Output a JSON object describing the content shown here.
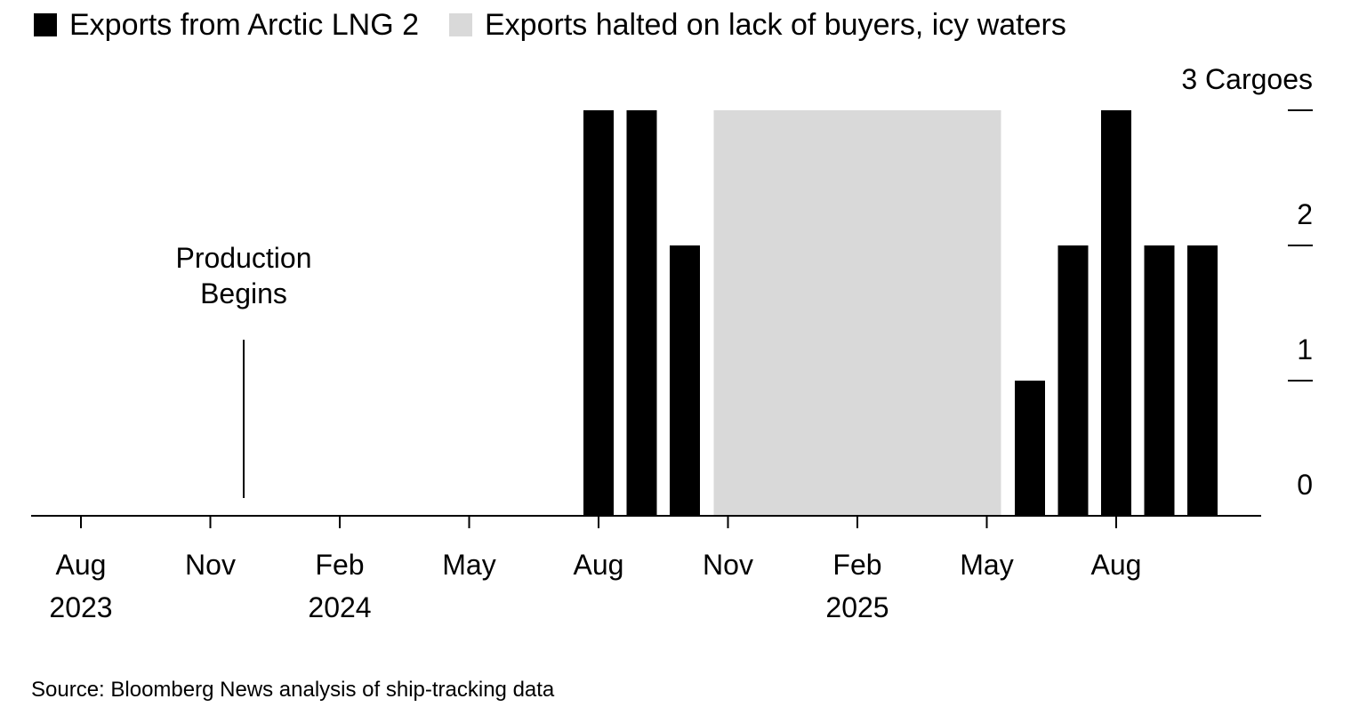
{
  "legend": [
    {
      "label": "Exports from Arctic LNG 2",
      "color": "#000000"
    },
    {
      "label": "Exports halted on lack of buyers, icy waters",
      "color": "#d9d9d9"
    }
  ],
  "source": "Source: Bloomberg News analysis of ship-tracking data",
  "chart_data": {
    "type": "bar",
    "title": "",
    "xlabel": "",
    "ylabel": "",
    "y_unit": "Cargoes",
    "ylim": [
      0,
      3
    ],
    "y_ticks": [
      0,
      1,
      2,
      3
    ],
    "y_tick_labels": [
      "0",
      "1",
      "2",
      "3 Cargoes"
    ],
    "y_axis_side": "right",
    "grid": false,
    "x_range": [
      "2023-07",
      "2025-12"
    ],
    "x_ticks": [
      {
        "month": "2023-08",
        "label": "Aug",
        "year": "2023"
      },
      {
        "month": "2023-11",
        "label": "Nov",
        "year": ""
      },
      {
        "month": "2024-02",
        "label": "Feb",
        "year": "2024"
      },
      {
        "month": "2024-05",
        "label": "May",
        "year": ""
      },
      {
        "month": "2024-08",
        "label": "Aug",
        "year": ""
      },
      {
        "month": "2024-11",
        "label": "Nov",
        "year": ""
      },
      {
        "month": "2025-02",
        "label": "Feb",
        "year": "2025"
      },
      {
        "month": "2025-05",
        "label": "May",
        "year": ""
      },
      {
        "month": "2025-08",
        "label": "Aug",
        "year": ""
      }
    ],
    "categories": [
      "2024-08",
      "2024-09",
      "2024-10",
      "2025-06",
      "2025-07",
      "2025-08",
      "2025-09",
      "2025-10"
    ],
    "values": [
      3,
      3,
      2,
      1,
      2,
      3,
      2,
      2
    ],
    "shaded_periods": [
      {
        "from": "2024-11",
        "to": "2025-05",
        "label": "Exports halted on lack of buyers, icy waters"
      }
    ],
    "annotations": [
      {
        "text": [
          "Production",
          "Begins"
        ],
        "month": "2023-12"
      }
    ]
  }
}
